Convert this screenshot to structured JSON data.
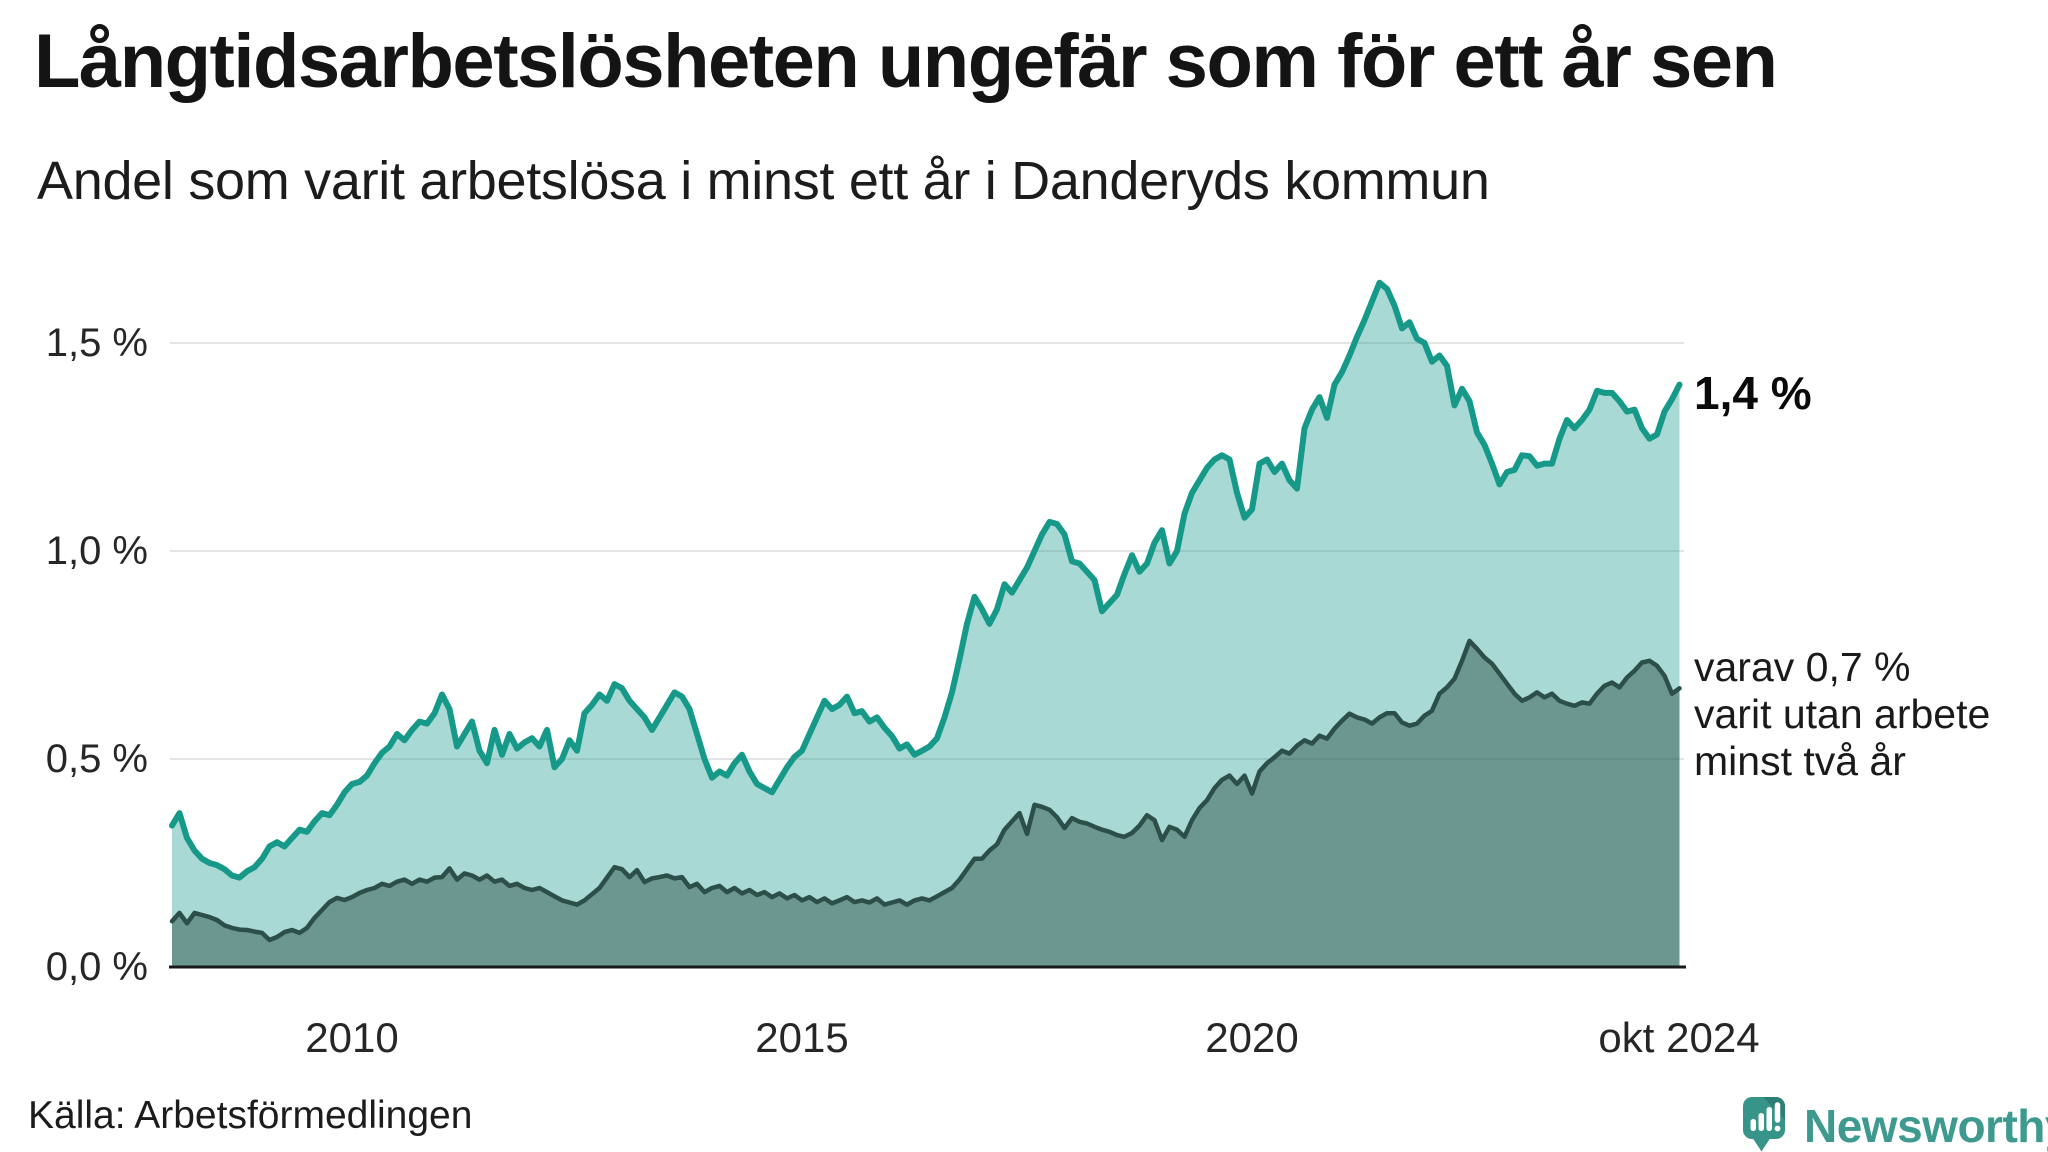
{
  "header": {
    "title": "Långtidsarbetslösheten ungefär som för ett år sen",
    "subtitle": "Andel som varit arbetslösa i minst ett år i Danderyds kommun"
  },
  "source": {
    "label": "Källa: Arbetsförmedlingen"
  },
  "logo": {
    "text": "Newsworthy",
    "color": "#3e9a8f",
    "icon": "speech-bubble-bar-chart-icon"
  },
  "chart_data": {
    "type": "area",
    "title": "Långtidsarbetslösheten ungefär som för ett år sen",
    "subtitle": "Andel som varit arbetslösa i minst ett år i Danderyds kommun",
    "unit": "%",
    "frequency": "monthly",
    "x_start": "2008-01",
    "x_end": "2024-10",
    "ylim": [
      0,
      1.75
    ],
    "grid": "horizontal",
    "legend_position": "right-annotations",
    "yticks": [
      {
        "label": "1,5 %",
        "value": 1.5
      },
      {
        "label": "1,0 %",
        "value": 1.0
      },
      {
        "label": "0,5 %",
        "value": 0.5
      },
      {
        "label": "0,0 %",
        "value": 0.0
      }
    ],
    "xticks": [
      {
        "label": "2010"
      },
      {
        "label": "2015"
      },
      {
        "label": "2020"
      },
      {
        "label": "okt 2024"
      }
    ],
    "annotations": {
      "series1_end_label": "1,4 %",
      "series2_end_label_lines": [
        "varav 0,7 %",
        "varit utan arbete",
        "minst två år"
      ]
    },
    "series": [
      {
        "name": "Andel arbetslösa minst ett år",
        "line_color": "#17998a",
        "fill_color": "rgba(23,153,138,0.37)",
        "end_value": 1.4,
        "values": [
          [
            0.34,
            0.37,
            0.31,
            0.28,
            0.26,
            0.25,
            0.245,
            0.235,
            0.22,
            0.215,
            0.23,
            0.24
          ],
          [
            0.26,
            0.29,
            0.3,
            0.29,
            0.31,
            0.33,
            0.325,
            0.35,
            0.37,
            0.365,
            0.39,
            0.42
          ],
          [
            0.44,
            0.445,
            0.46,
            0.49,
            0.515,
            0.53,
            0.56,
            0.545,
            0.57,
            0.59,
            0.585,
            0.61
          ],
          [
            0.655,
            0.62,
            0.53,
            0.56,
            0.59,
            0.52,
            0.49,
            0.57,
            0.51,
            0.56,
            0.525,
            0.54
          ],
          [
            0.55,
            0.53,
            0.57,
            0.48,
            0.5,
            0.545,
            0.52,
            0.61,
            0.63,
            0.655,
            0.64,
            0.68
          ],
          [
            0.67,
            0.64,
            0.62,
            0.6,
            0.57,
            0.6,
            0.63,
            0.66,
            0.65,
            0.62,
            0.56,
            0.5
          ],
          [
            0.455,
            0.47,
            0.46,
            0.49,
            0.51,
            0.47,
            0.44,
            0.43,
            0.42,
            0.45,
            0.48,
            0.505
          ],
          [
            0.52,
            0.56,
            0.6,
            0.64,
            0.62,
            0.63,
            0.65,
            0.61,
            0.615,
            0.59,
            0.6,
            0.575
          ],
          [
            0.555,
            0.525,
            0.535,
            0.51,
            0.52,
            0.53,
            0.55,
            0.6,
            0.66,
            0.74,
            0.825,
            0.89
          ],
          [
            0.86,
            0.825,
            0.86,
            0.92,
            0.9,
            0.93,
            0.96,
            1.0,
            1.04,
            1.07,
            1.065,
            1.04
          ],
          [
            0.975,
            0.97,
            0.95,
            0.93,
            0.855,
            0.875,
            0.895,
            0.945,
            0.99,
            0.95,
            0.97,
            1.02
          ],
          [
            1.05,
            0.97,
            1.0,
            1.09,
            1.14,
            1.17,
            1.2,
            1.22,
            1.23,
            1.22,
            1.14,
            1.08
          ],
          [
            1.1,
            1.21,
            1.22,
            1.19,
            1.21,
            1.17,
            1.15,
            1.295,
            1.34,
            1.37,
            1.32,
            1.4
          ],
          [
            1.43,
            1.47,
            1.515,
            1.555,
            1.6,
            1.645,
            1.63,
            1.59,
            1.535,
            1.55,
            1.51,
            1.5
          ],
          [
            1.455,
            1.47,
            1.445,
            1.35,
            1.39,
            1.36,
            1.285,
            1.255,
            1.21,
            1.16,
            1.19,
            1.195
          ],
          [
            1.23,
            1.228,
            1.205,
            1.21,
            1.21,
            1.27,
            1.315,
            1.295,
            1.315,
            1.34,
            1.385,
            1.38
          ],
          [
            1.38,
            1.36,
            1.335,
            1.34,
            1.295,
            1.27,
            1.28,
            1.335,
            1.365,
            1.4
          ]
        ]
      },
      {
        "name": "varav utan arbete minst två år",
        "line_color": "#2d4f49",
        "fill_color": "rgba(32,70,62,0.45)",
        "end_value": 0.7,
        "values": [
          [
            0.11,
            0.13,
            0.105,
            0.13,
            0.125,
            0.12,
            0.113,
            0.1,
            0.094,
            0.09,
            0.089,
            0.085
          ],
          [
            0.082,
            0.065,
            0.072,
            0.084,
            0.089,
            0.082,
            0.094,
            0.118,
            0.137,
            0.156,
            0.166,
            0.161
          ],
          [
            0.168,
            0.178,
            0.185,
            0.19,
            0.2,
            0.195,
            0.205,
            0.21,
            0.2,
            0.21,
            0.205,
            0.215
          ],
          [
            0.216,
            0.237,
            0.21,
            0.225,
            0.22,
            0.21,
            0.22,
            0.205,
            0.21,
            0.195,
            0.2,
            0.19
          ],
          [
            0.185,
            0.19,
            0.18,
            0.17,
            0.16,
            0.155,
            0.15,
            0.16,
            0.175,
            0.19,
            0.215,
            0.24
          ],
          [
            0.235,
            0.216,
            0.233,
            0.204,
            0.213,
            0.216,
            0.22,
            0.213,
            0.216,
            0.192,
            0.2,
            0.18
          ],
          [
            0.19,
            0.195,
            0.18,
            0.19,
            0.177,
            0.185,
            0.173,
            0.18,
            0.168,
            0.177,
            0.165,
            0.173
          ],
          [
            0.16,
            0.168,
            0.156,
            0.165,
            0.153,
            0.16,
            0.168,
            0.156,
            0.16,
            0.155,
            0.165,
            0.15
          ],
          [
            0.155,
            0.16,
            0.15,
            0.16,
            0.165,
            0.16,
            0.17,
            0.18,
            0.19,
            0.21,
            0.235,
            0.26
          ],
          [
            0.26,
            0.28,
            0.295,
            0.33,
            0.35,
            0.37,
            0.32,
            0.39,
            0.385,
            0.378,
            0.36,
            0.334
          ],
          [
            0.358,
            0.349,
            0.345,
            0.337,
            0.33,
            0.325,
            0.317,
            0.313,
            0.322,
            0.34,
            0.365,
            0.353
          ],
          [
            0.305,
            0.337,
            0.33,
            0.313,
            0.353,
            0.382,
            0.401,
            0.43,
            0.45,
            0.46,
            0.44,
            0.46
          ],
          [
            0.417,
            0.47,
            0.49,
            0.504,
            0.52,
            0.513,
            0.532,
            0.545,
            0.537,
            0.556,
            0.549,
            0.573
          ],
          [
            0.592,
            0.609,
            0.6,
            0.595,
            0.585,
            0.6,
            0.61,
            0.61,
            0.588,
            0.58,
            0.585,
            0.604
          ],
          [
            0.616,
            0.657,
            0.672,
            0.693,
            0.736,
            0.784,
            0.765,
            0.744,
            0.729,
            0.705,
            0.681,
            0.657
          ],
          [
            0.64,
            0.648,
            0.66,
            0.648,
            0.657,
            0.64,
            0.633,
            0.628,
            0.636,
            0.633,
            0.657,
            0.676
          ],
          [
            0.684,
            0.672,
            0.696,
            0.712,
            0.732,
            0.736,
            0.724,
            0.7,
            0.657,
            0.67
          ]
        ]
      }
    ]
  }
}
